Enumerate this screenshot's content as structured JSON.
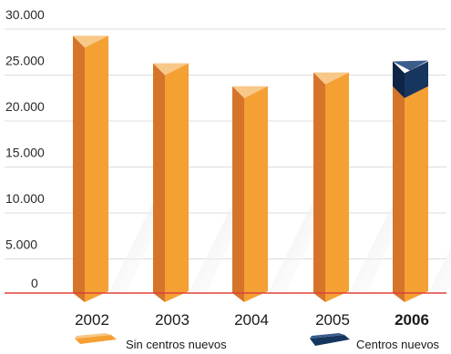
{
  "chart_data": {
    "type": "bar",
    "title": "",
    "xlabel": "",
    "ylabel": "",
    "categories": [
      "2002",
      "2003",
      "2004",
      "2005",
      "2006"
    ],
    "highlight_category": "2006",
    "series": [
      {
        "name": "Sin centros nuevos",
        "values": [
          28000,
          25000,
          22500,
          24000,
          22500
        ]
      },
      {
        "name": "Centros nuevos",
        "values": [
          0,
          0,
          0,
          0,
          2700
        ]
      }
    ],
    "y_ticks": [
      "30.000",
      "25.000",
      "20.000",
      "15.000",
      "10.000",
      "5.000",
      "0"
    ],
    "y_tick_values": [
      30000,
      25000,
      20000,
      15000,
      10000,
      5000,
      0
    ],
    "ylim": [
      0,
      30000
    ],
    "grid": true,
    "legend_position": "bottom",
    "colors": {
      "front": "#F5A033",
      "side": "#D6742A",
      "top": "#F8C889",
      "new_front": "#16365F",
      "new_side": "#0E2545",
      "new_top": "#3C5D8C",
      "grid": "#DCDCDC",
      "baseline": "#E0403A"
    }
  }
}
